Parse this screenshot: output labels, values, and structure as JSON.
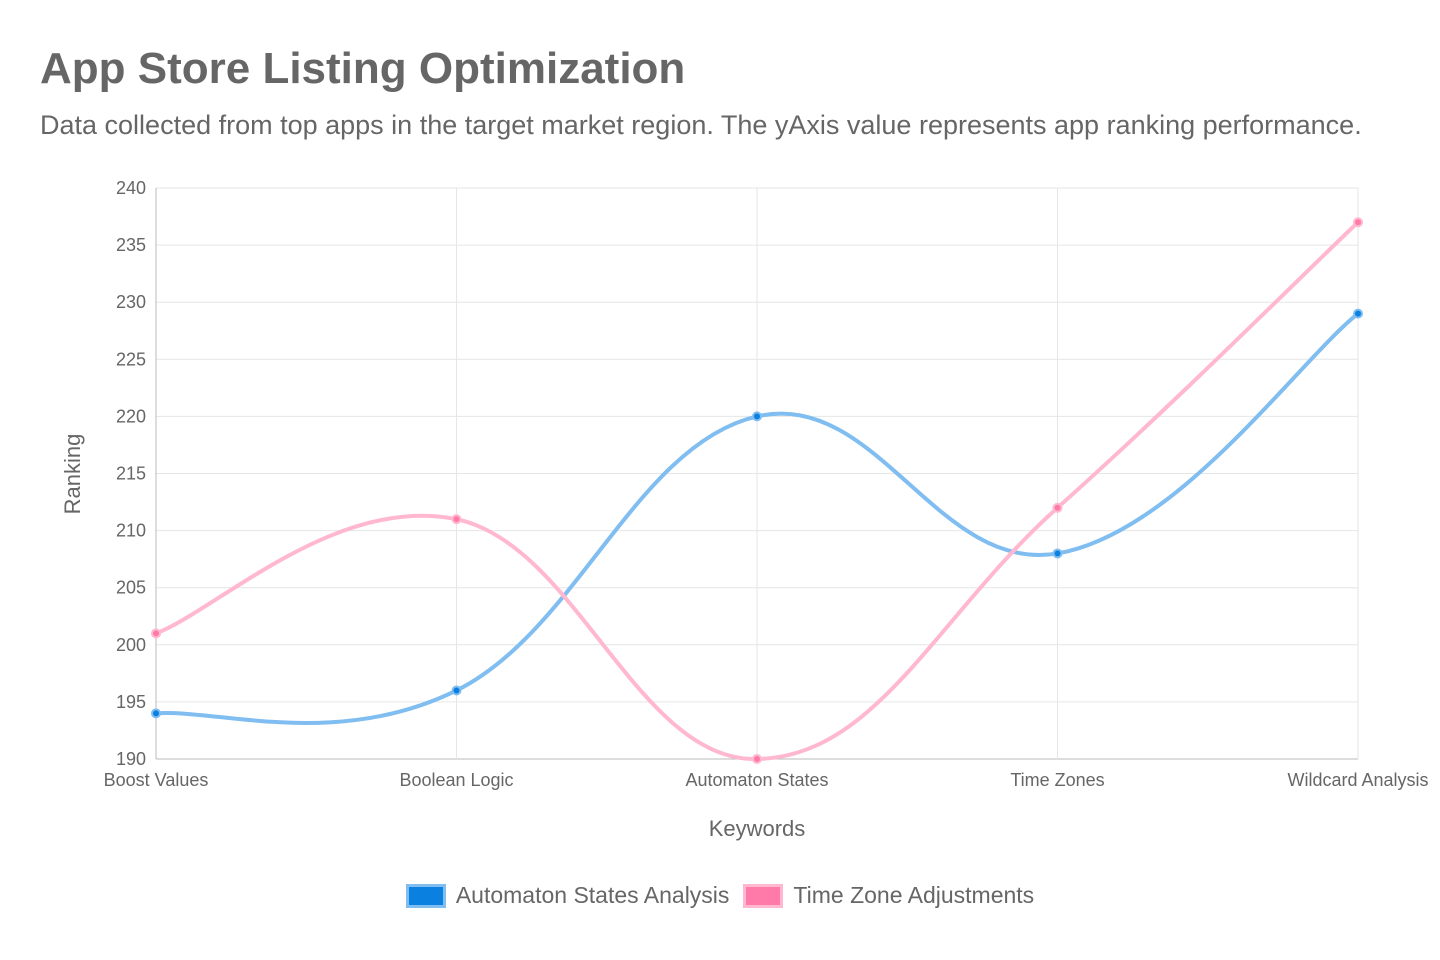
{
  "title": "App Store Listing Optimization",
  "subtitle": "Data collected from top apps in the target market region. The yAxis value represents app ranking performance.",
  "chart_data": {
    "type": "line",
    "categories": [
      "Boost Values",
      "Boolean Logic",
      "Automaton States",
      "Time Zones",
      "Wildcard Analysis"
    ],
    "xlabel": "Keywords",
    "ylabel": "Ranking",
    "ylim": [
      190,
      240
    ],
    "yticks": [
      190,
      195,
      200,
      205,
      210,
      215,
      220,
      225,
      230,
      235,
      240
    ],
    "grid": true,
    "legend": "bottom",
    "series": [
      {
        "name": "Automaton States Analysis",
        "values": [
          194,
          196,
          220,
          208,
          229
        ],
        "color": "#0a80e0",
        "line_color": "#80bdf0"
      },
      {
        "name": "Time Zone Adjustments",
        "values": [
          201,
          211,
          190,
          212,
          237
        ],
        "color": "#ff7aa8",
        "line_color": "#ffb8cf"
      }
    ]
  }
}
